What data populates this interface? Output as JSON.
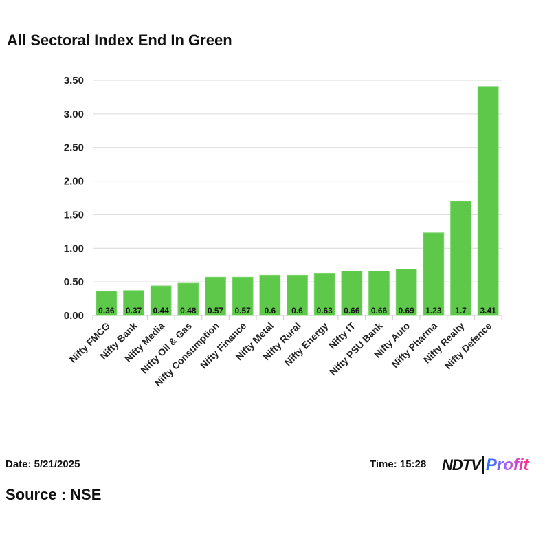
{
  "chart_data": {
    "type": "bar",
    "title": "All Sectoral Index End In Green",
    "xlabel": "",
    "ylabel": "",
    "ylim": [
      0,
      3.5
    ],
    "yticks": [
      "0.00",
      "0.50",
      "1.00",
      "1.50",
      "2.00",
      "2.50",
      "3.00",
      "3.50"
    ],
    "grid": true,
    "categories": [
      "Nifty FMCG",
      "Nifty Bank",
      "Nifty Media",
      "Nifty Oil & Gas",
      "Nifty Consumption",
      "Nifty Finance",
      "Nifty Metal",
      "Nifty Rural",
      "Nifty Energy",
      "Nifty IT",
      "Nifty PSU Bank",
      "Nifty Auto",
      "Nifty Pharma",
      "Nifty Realty",
      "Nifty Defence"
    ],
    "values": [
      0.36,
      0.37,
      0.44,
      0.48,
      0.57,
      0.57,
      0.6,
      0.6,
      0.63,
      0.66,
      0.66,
      0.69,
      1.23,
      1.7,
      3.41
    ],
    "data_labels": [
      "0.36",
      "0.37",
      "0.44",
      "0.48",
      "0.57",
      "0.57",
      "0.6",
      "0.6",
      "0.63",
      "0.66",
      "0.66",
      "0.69",
      "1.23",
      "1.7",
      "3.41"
    ],
    "bar_color": "#5ec84a"
  },
  "footer": {
    "date": "Date: 5/21/2025",
    "time": "Time: 15:28",
    "source": "Source : NSE",
    "logo_ndtv": "NDTV",
    "logo_profit": "Profit"
  }
}
